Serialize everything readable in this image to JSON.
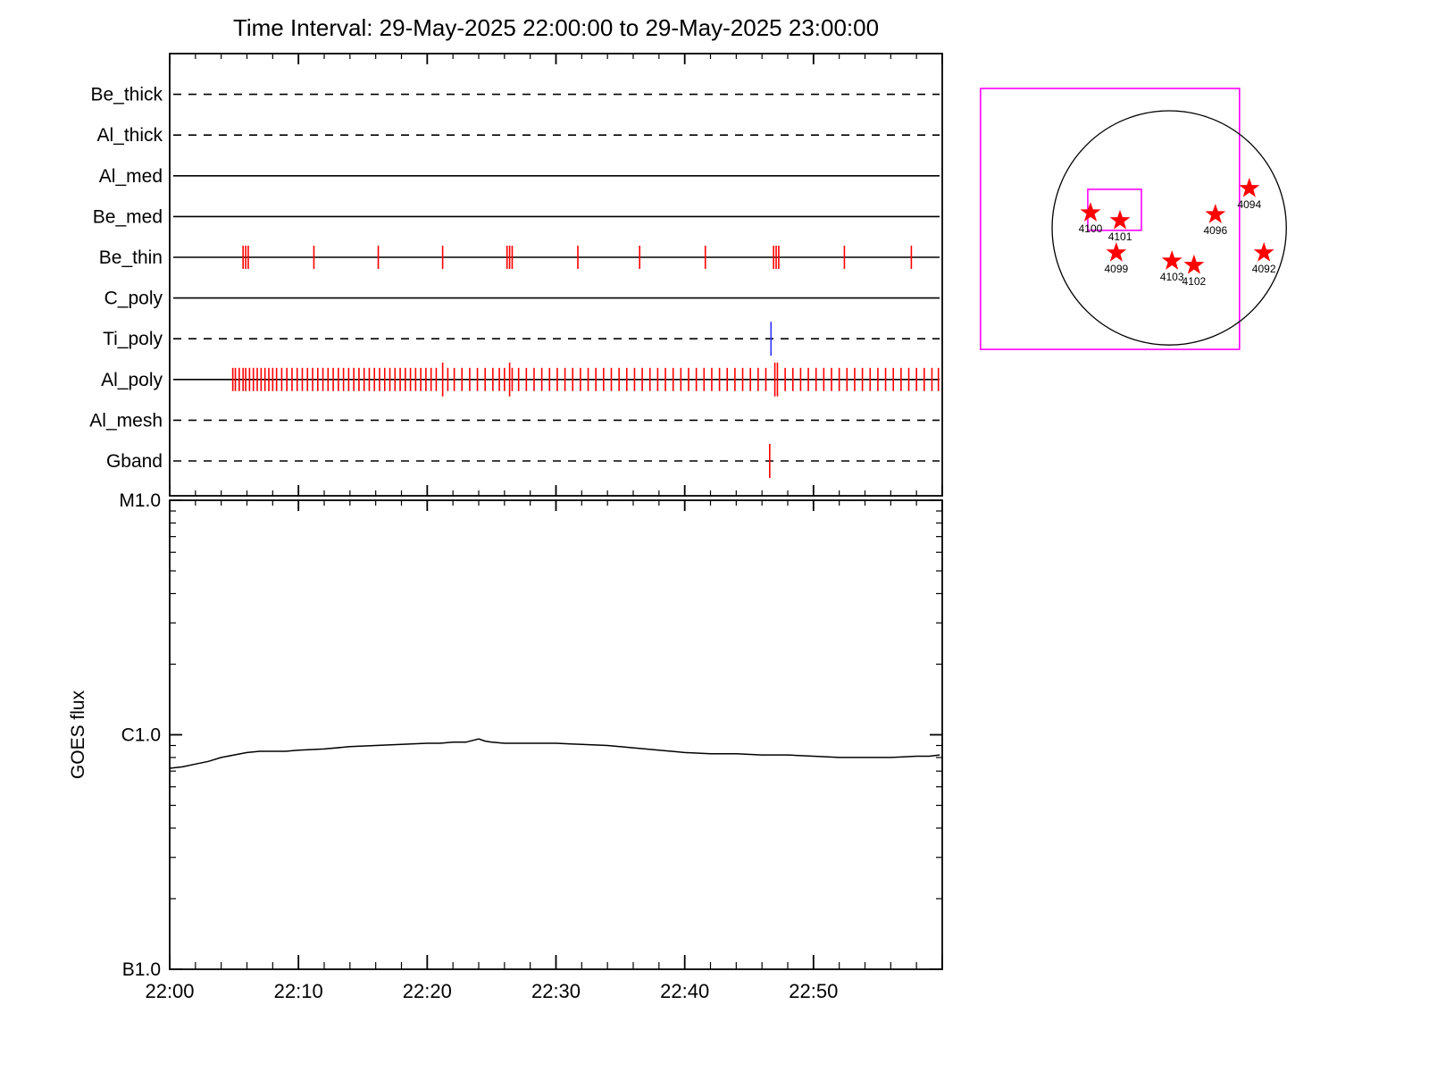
{
  "title": "Time Interval: 29-May-2025 22:00:00 to 29-May-2025 23:00:00",
  "colors": {
    "exposure_tick_red": "#ff0000",
    "exposure_tick_blue": "#3333ff",
    "fov_box_magenta": "#ff00ff",
    "star_red": "#ff0000",
    "axis_black": "#000000"
  },
  "chart_data": [
    {
      "type": "scatter",
      "name": "instrument_exposure_timeline",
      "x_axis": {
        "start": "22:00:00",
        "end": "23:00:00",
        "units": "minutes since 22:00",
        "range": [
          0,
          60
        ],
        "major_tick_min": 10,
        "minor_tick_min": 2
      },
      "channels": [
        {
          "label": "Be_thick",
          "line_style": "dashed",
          "tick_color": null,
          "exposures_min": []
        },
        {
          "label": "Al_thick",
          "line_style": "dashed",
          "tick_color": null,
          "exposures_min": []
        },
        {
          "label": "Al_med",
          "line_style": "solid",
          "tick_color": null,
          "exposures_min": []
        },
        {
          "label": "Be_med",
          "line_style": "solid",
          "tick_color": null,
          "exposures_min": []
        },
        {
          "label": "Be_thin",
          "line_style": "solid",
          "tick_color": "#ff0000",
          "exposures_min": [
            5.7,
            5.9,
            6.1,
            11.2,
            16.2,
            21.2,
            26.2,
            26.4,
            26.6,
            31.7,
            36.5,
            41.6,
            46.9,
            47.1,
            47.3,
            52.4,
            57.6
          ]
        },
        {
          "label": "C_poly",
          "line_style": "solid",
          "tick_color": null,
          "exposures_min": []
        },
        {
          "label": "Ti_poly",
          "line_style": "dashed",
          "tick_color": "#3333ff",
          "exposures_min": [
            46.7
          ],
          "tall_min": [
            46.7
          ]
        },
        {
          "label": "Al_poly",
          "line_style": "solid",
          "tick_color": "#ff0000",
          "exposures_min": [
            4.9,
            5.1,
            5.4,
            5.7,
            5.9,
            6.2,
            6.5,
            6.8,
            7.1,
            7.4,
            7.7,
            8.0,
            8.3,
            8.7,
            9.1,
            9.5,
            9.9,
            10.3,
            10.7,
            11.1,
            11.5,
            11.9,
            12.3,
            12.7,
            13.1,
            13.5,
            13.9,
            14.3,
            14.7,
            15.1,
            15.5,
            15.9,
            16.3,
            16.7,
            17.1,
            17.5,
            17.9,
            18.3,
            18.7,
            19.1,
            19.5,
            19.9,
            20.3,
            20.7,
            21.2,
            21.6,
            22.1,
            22.7,
            23.3,
            23.9,
            24.5,
            25.1,
            25.6,
            26.0,
            26.4,
            26.6,
            27.1,
            27.7,
            28.3,
            28.9,
            29.5,
            30.1,
            30.7,
            31.3,
            31.9,
            32.5,
            33.1,
            33.7,
            34.3,
            34.9,
            35.5,
            36.1,
            36.7,
            37.3,
            37.9,
            38.5,
            39.1,
            39.7,
            40.3,
            40.9,
            41.5,
            42.1,
            42.7,
            43.3,
            43.9,
            44.5,
            45.1,
            45.7,
            46.3,
            47.0,
            47.2,
            47.8,
            48.4,
            49.0,
            49.6,
            50.2,
            50.8,
            51.4,
            52.0,
            52.6,
            53.2,
            53.8,
            54.4,
            55.0,
            55.6,
            56.2,
            56.8,
            57.4,
            58.0,
            58.6,
            59.2,
            59.7
          ],
          "tall_min": [
            21.2,
            26.4,
            47.0,
            47.2
          ]
        },
        {
          "label": "Al_mesh",
          "line_style": "dashed",
          "tick_color": null,
          "exposures_min": []
        },
        {
          "label": "Gband",
          "line_style": "dashed",
          "tick_color": "#ff0000",
          "exposures_min": [
            46.6
          ],
          "tall_min": [
            46.6
          ]
        }
      ]
    },
    {
      "type": "line",
      "name": "goes_flux",
      "ylabel": "GOES flux",
      "yscale": "log",
      "ylim_wm2": [
        1e-07,
        1e-05
      ],
      "yticks": [
        {
          "label": "M1.0",
          "wm2": 1e-05
        },
        {
          "label": "C1.0",
          "wm2": 1e-06
        },
        {
          "label": "B1.0",
          "wm2": 1e-07
        }
      ],
      "xticks": [
        {
          "label": "22:00",
          "min": 0
        },
        {
          "label": "22:10",
          "min": 10
        },
        {
          "label": "22:20",
          "min": 20
        },
        {
          "label": "22:30",
          "min": 30
        },
        {
          "label": "22:40",
          "min": 40
        },
        {
          "label": "22:50",
          "min": 50
        }
      ],
      "series": [
        {
          "name": "GOES flux",
          "x_min": [
            0,
            1,
            2,
            3,
            4,
            5,
            6,
            7,
            8,
            9,
            10,
            12,
            14,
            16,
            18,
            20,
            21,
            22,
            23,
            24,
            24.5,
            25,
            26,
            28,
            30,
            32,
            34,
            36,
            38,
            40,
            42,
            44,
            46,
            48,
            50,
            52,
            54,
            56,
            58,
            59,
            59.8
          ],
          "flux_1e6_wm2": [
            0.72,
            0.73,
            0.75,
            0.77,
            0.8,
            0.82,
            0.84,
            0.85,
            0.85,
            0.85,
            0.86,
            0.87,
            0.89,
            0.9,
            0.91,
            0.92,
            0.92,
            0.93,
            0.93,
            0.96,
            0.94,
            0.93,
            0.92,
            0.92,
            0.92,
            0.91,
            0.9,
            0.88,
            0.86,
            0.84,
            0.83,
            0.83,
            0.82,
            0.82,
            0.81,
            0.8,
            0.8,
            0.8,
            0.81,
            0.81,
            0.82
          ]
        }
      ]
    },
    {
      "type": "scatter",
      "name": "solar_disk_active_regions",
      "limb_circle": {
        "cx": 0.603,
        "cy": 0.515,
        "r_frac_w": 0.345
      },
      "fov_boxes": [
        {
          "name": "outer-fov-box",
          "x": 0.047,
          "y": 0.056,
          "w": 0.763,
          "h": 0.859
        },
        {
          "name": "target-fov-box",
          "x": 0.363,
          "y": 0.388,
          "w": 0.158,
          "h": 0.135
        }
      ],
      "regions": [
        {
          "noaa": "4100",
          "fx": 0.371,
          "fy": 0.465
        },
        {
          "noaa": "4101",
          "fx": 0.458,
          "fy": 0.491
        },
        {
          "noaa": "4094",
          "fx": 0.839,
          "fy": 0.385
        },
        {
          "noaa": "4096",
          "fx": 0.739,
          "fy": 0.471
        },
        {
          "noaa": "4099",
          "fx": 0.447,
          "fy": 0.597
        },
        {
          "noaa": "4103",
          "fx": 0.611,
          "fy": 0.624
        },
        {
          "noaa": "4102",
          "fx": 0.676,
          "fy": 0.638
        },
        {
          "noaa": "4092",
          "fx": 0.882,
          "fy": 0.597
        }
      ]
    }
  ]
}
